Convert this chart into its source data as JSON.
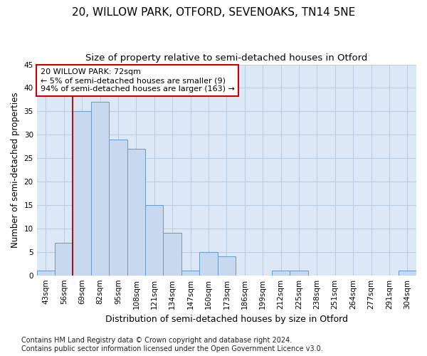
{
  "title": "20, WILLOW PARK, OTFORD, SEVENOAKS, TN14 5NE",
  "subtitle": "Size of property relative to semi-detached houses in Otford",
  "xlabel": "Distribution of semi-detached houses by size in Otford",
  "ylabel": "Number of semi-detached properties",
  "bin_labels": [
    "43sqm",
    "56sqm",
    "69sqm",
    "82sqm",
    "95sqm",
    "108sqm",
    "121sqm",
    "134sqm",
    "147sqm",
    "160sqm",
    "173sqm",
    "186sqm",
    "199sqm",
    "212sqm",
    "225sqm",
    "238sqm",
    "251sqm",
    "264sqm",
    "277sqm",
    "291sqm",
    "304sqm"
  ],
  "bar_values": [
    1,
    7,
    35,
    37,
    29,
    27,
    15,
    9,
    1,
    5,
    4,
    0,
    0,
    1,
    1,
    0,
    0,
    0,
    0,
    0,
    1
  ],
  "bar_color": "#c8d8ee",
  "bar_edge_color": "#6699cc",
  "ref_line_bin_index": 2,
  "annotation_text": "20 WILLOW PARK: 72sqm\n← 5% of semi-detached houses are smaller (9)\n94% of semi-detached houses are larger (163) →",
  "annotation_box_color": "#ffffff",
  "annotation_box_edge_color": "#cc0000",
  "ref_line_color": "#aa0000",
  "ylim": [
    0,
    45
  ],
  "yticks": [
    0,
    5,
    10,
    15,
    20,
    25,
    30,
    35,
    40,
    45
  ],
  "footer_text": "Contains HM Land Registry data © Crown copyright and database right 2024.\nContains public sector information licensed under the Open Government Licence v3.0.",
  "background_color": "#ffffff",
  "plot_bg_color": "#dce8f5",
  "grid_color": "#b8cce0",
  "title_fontsize": 11,
  "subtitle_fontsize": 9.5,
  "ylabel_fontsize": 8.5,
  "xlabel_fontsize": 9,
  "tick_fontsize": 7.5,
  "annotation_fontsize": 8,
  "footer_fontsize": 7
}
